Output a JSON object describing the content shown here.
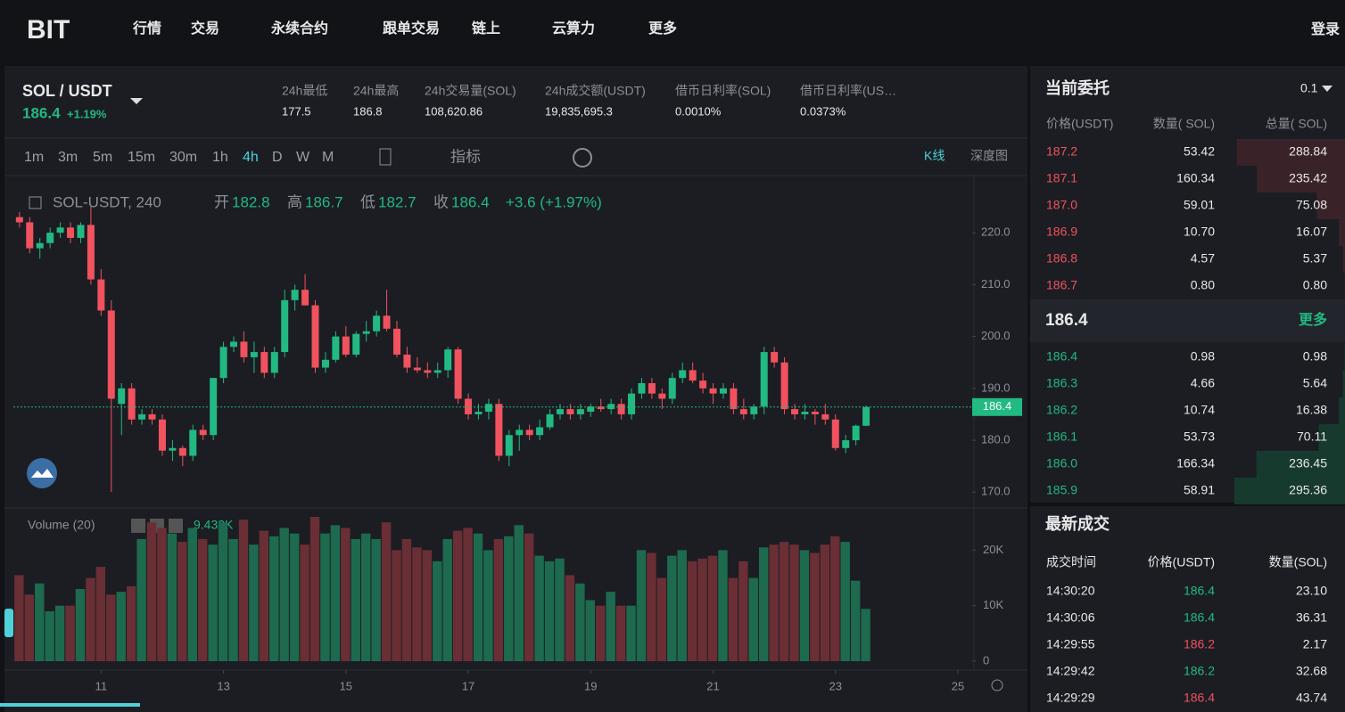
{
  "nav": {
    "logo": "BIT",
    "items": [
      "行情",
      "交易",
      "永续合约",
      "跟单交易",
      "链上",
      "云算力",
      "更多"
    ],
    "login": "登录"
  },
  "ticker": {
    "pair": "SOL / USDT",
    "price": "186.4",
    "change": "+1.19%",
    "stats": [
      {
        "label": "24h最低",
        "value": "177.5"
      },
      {
        "label": "24h最高",
        "value": "186.8"
      },
      {
        "label": "24h交易量(SOL)",
        "value": "108,620.86"
      },
      {
        "label": "24h成交额(USDT)",
        "value": "19,835,695.3"
      },
      {
        "label": "借币日利率(SOL)",
        "value": "0.0010%"
      },
      {
        "label": "借币日利率(US…",
        "value": "0.0373%"
      }
    ]
  },
  "toolbar": {
    "intervals": [
      "1m",
      "3m",
      "5m",
      "15m",
      "30m",
      "1h",
      "4h",
      "D",
      "W",
      "M"
    ],
    "active_index": 6,
    "indicator": "指标",
    "views": [
      "K线",
      "深度图"
    ]
  },
  "chart_data": {
    "type": "candlestick",
    "symbol": "SOL-USDT, 240",
    "ohlc": [
      {
        "label": "开",
        "value": "182.8"
      },
      {
        "label": "高",
        "value": "186.7"
      },
      {
        "label": "低",
        "value": "182.7"
      },
      {
        "label": "收",
        "value": "186.4"
      }
    ],
    "change": "+3.6 (+1.97%)",
    "open": [
      223,
      222,
      217,
      218,
      220,
      221,
      219,
      221.5,
      211,
      205,
      187,
      190,
      184,
      185,
      184,
      178,
      178.5,
      177,
      182,
      181,
      192,
      198,
      199,
      196,
      197,
      193,
      197,
      207,
      209,
      206,
      194,
      195.5,
      200,
      196.5,
      200.5,
      201,
      204,
      201.5,
      196.5,
      194,
      193.5,
      193,
      193.5,
      197.5,
      188,
      185,
      185.5,
      187,
      177,
      181,
      182,
      181,
      182.5,
      185,
      186,
      185,
      185.5,
      186.5,
      186,
      187,
      185,
      189,
      191,
      189,
      188,
      192,
      193.5,
      191.5,
      190,
      189,
      190,
      186,
      185,
      186.5,
      197,
      195,
      186,
      185,
      185.5,
      185,
      184,
      178.5,
      180,
      182.8
    ],
    "high": [
      224,
      223,
      219,
      221,
      222,
      222,
      222,
      225,
      213,
      207,
      191,
      191,
      186,
      186,
      185,
      180,
      179,
      183,
      183,
      192,
      199,
      200,
      201,
      199,
      198,
      198,
      209,
      210,
      212,
      207,
      197,
      201,
      202,
      201,
      203,
      205,
      209,
      203,
      198,
      196,
      195,
      195,
      198,
      198,
      189,
      187,
      188,
      188,
      182,
      183,
      183,
      184,
      186,
      187,
      187,
      187,
      187,
      188,
      188,
      188,
      190,
      192,
      192,
      190,
      193,
      195,
      195,
      193,
      191,
      191,
      191,
      188,
      187,
      198,
      198,
      196,
      187,
      187,
      186,
      187,
      185,
      181,
      183,
      186.7
    ],
    "low": [
      221,
      216,
      215,
      217,
      219,
      218,
      218,
      210,
      204,
      170,
      181,
      183,
      183,
      183,
      177,
      176,
      175,
      176,
      180,
      180,
      191,
      197,
      195,
      193,
      192,
      192,
      196,
      205,
      206,
      193,
      193,
      195,
      196,
      196,
      199,
      200,
      201,
      196,
      193,
      193,
      192,
      192,
      192,
      187,
      184,
      184,
      184,
      176,
      175,
      178,
      180,
      180,
      182,
      184,
      184,
      184,
      184.5,
      185.5,
      185,
      184,
      184,
      188,
      188,
      186,
      187,
      191,
      191,
      189,
      187,
      188,
      185,
      184,
      184,
      185,
      194,
      185,
      184,
      184,
      183,
      183,
      178,
      177.5,
      179,
      182.7
    ],
    "close": [
      222,
      217,
      218,
      220,
      221,
      219,
      221.5,
      211,
      205,
      188,
      190,
      184,
      185,
      184,
      178,
      178.5,
      177,
      182,
      181,
      192,
      198,
      199,
      196,
      197,
      193,
      197,
      207,
      209,
      206,
      194,
      195.5,
      200,
      196.5,
      200.5,
      201,
      204,
      201.5,
      196.5,
      194,
      193.5,
      193,
      193.5,
      197.5,
      188,
      185,
      185.5,
      187,
      177,
      181,
      182,
      181,
      182.5,
      185,
      186,
      185,
      186,
      186.5,
      186,
      187,
      185,
      189,
      191,
      189,
      188,
      192,
      193.5,
      191.5,
      190,
      189,
      190,
      186,
      185,
      186.5,
      197,
      195,
      186,
      185,
      185.5,
      185,
      184,
      178.5,
      180,
      182.8,
      186.4
    ],
    "xlim": [
      -0.6,
      93.4
    ],
    "xticks": [
      {
        "value": 8,
        "label": "11"
      },
      {
        "value": 20,
        "label": "13"
      },
      {
        "value": 32,
        "label": "15"
      },
      {
        "value": 44,
        "label": "17"
      },
      {
        "value": 56,
        "label": "19"
      },
      {
        "value": 68,
        "label": "21"
      },
      {
        "value": 80,
        "label": "23"
      },
      {
        "value": 92,
        "label": "25"
      }
    ],
    "ylim": [
      167.3,
      230.5
    ],
    "yticks": [
      {
        "value": 170,
        "label": "170.0"
      },
      {
        "value": 180,
        "label": "180.0"
      },
      {
        "value": 190,
        "label": "190.0"
      },
      {
        "value": 200,
        "label": "200.0"
      },
      {
        "value": 210,
        "label": "210.0"
      },
      {
        "value": 220,
        "label": "220.0"
      }
    ],
    "last_price": {
      "value": 186.4,
      "label": "186.4"
    },
    "colors": {
      "up": "#22b982",
      "down": "#f0525e",
      "vol_up": "#1d6a4f",
      "vol_down": "#6a2e35"
    },
    "volume": {
      "title": "Volume (20)",
      "last": "9.432K",
      "values": [
        15500,
        12000,
        14000,
        9000,
        10000,
        10000,
        13000,
        15000,
        17000,
        12000,
        12500,
        13500,
        22000,
        25000,
        24000,
        23000,
        21500,
        24000,
        22000,
        21000,
        25000,
        22000,
        25500,
        21000,
        23500,
        22500,
        24000,
        23000,
        21000,
        26000,
        23000,
        24500,
        24000,
        22000,
        23000,
        22000,
        25000,
        20000,
        22000,
        20500,
        20000,
        18000,
        22000,
        23500,
        24000,
        23000,
        20000,
        22000,
        22500,
        24500,
        23000,
        19000,
        18000,
        18500,
        15500,
        14000,
        11000,
        10000,
        12500,
        10000,
        10000,
        20000,
        19500,
        15000,
        19000,
        20000,
        18000,
        18500,
        19000,
        20000,
        15000,
        18000,
        15000,
        20500,
        21000,
        21500,
        21000,
        20000,
        19500,
        21000,
        22500,
        21500,
        14500,
        9432
      ],
      "ylim": [
        0,
        26000
      ],
      "yticks": [
        0,
        {
          "value": 10000,
          "label": "10K"
        },
        {
          "value": 20000,
          "label": "20K"
        }
      ]
    }
  },
  "orderbook": {
    "title": "当前委托",
    "precision": "0.1",
    "headers": [
      "价格(USDT)",
      "数量( SOL)",
      "总量( SOL)"
    ],
    "asks": [
      [
        "187.2",
        "53.42",
        "288.84"
      ],
      [
        "187.1",
        "160.34",
        "235.42"
      ],
      [
        "187.0",
        "59.01",
        "75.08"
      ],
      [
        "186.9",
        "10.70",
        "16.07"
      ],
      [
        "186.8",
        "4.57",
        "5.37"
      ],
      [
        "186.7",
        "0.80",
        "0.80"
      ]
    ],
    "mid": "186.4",
    "more": "更多",
    "bids": [
      [
        "186.4",
        "0.98",
        "0.98"
      ],
      [
        "186.3",
        "4.66",
        "5.64"
      ],
      [
        "186.2",
        "10.74",
        "16.38"
      ],
      [
        "186.1",
        "53.73",
        "70.11"
      ],
      [
        "186.0",
        "166.34",
        "236.45"
      ],
      [
        "185.9",
        "58.91",
        "295.36"
      ]
    ]
  },
  "trades": {
    "title": "最新成交",
    "headers": [
      "成交时间",
      "价格(USDT)",
      "数量(SOL)"
    ],
    "rows": [
      {
        "time": "14:30:20",
        "price": "186.4",
        "qty": "23.10",
        "color": "#22b982"
      },
      {
        "time": "14:30:06",
        "price": "186.4",
        "qty": "36.31",
        "color": "#22b982"
      },
      {
        "time": "14:29:55",
        "price": "186.2",
        "qty": "2.17",
        "color": "#f0525e"
      },
      {
        "time": "14:29:42",
        "price": "186.2",
        "qty": "32.68",
        "color": "#22b982"
      },
      {
        "time": "14:29:29",
        "price": "186.4",
        "qty": "43.74",
        "color": "#f0525e"
      }
    ]
  }
}
